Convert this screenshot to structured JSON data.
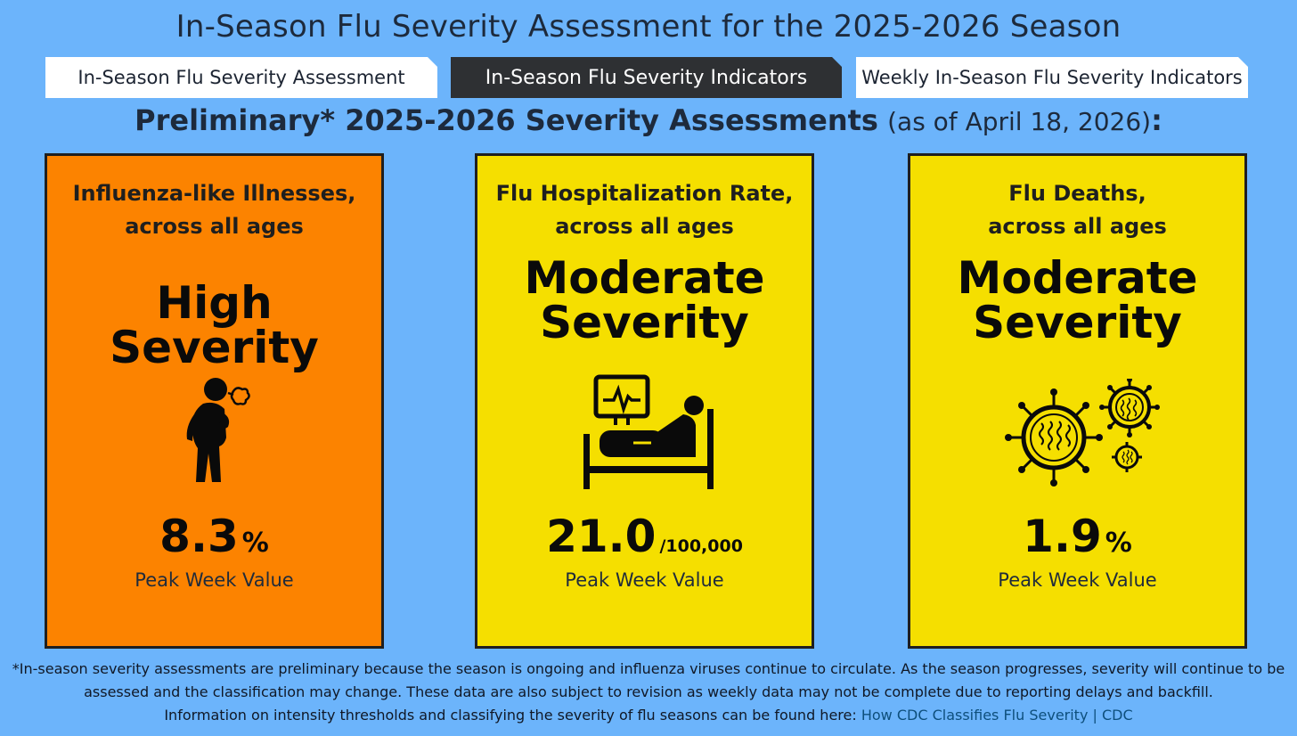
{
  "header": {
    "title": "In-Season Flu Severity Assessment for the 2025-2026 Season"
  },
  "tabs": [
    {
      "label": "In-Season Flu Severity Assessment",
      "active": false
    },
    {
      "label": "In-Season Flu Severity Indicators",
      "active": true
    },
    {
      "label": "Weekly In-Season Flu Severity Indicators",
      "active": false
    }
  ],
  "subtitle": {
    "main": "Preliminary* 2025-2026 Severity Assessments",
    "date": "(as of April 18, 2026)",
    "colon": ":"
  },
  "colors": {
    "background": "#6cb4fb",
    "high": "#fc8300",
    "moderate": "#f5df00",
    "active_tab": "#2e3033"
  },
  "cards": [
    {
      "title_line1": "Influenza-like Illnesses,",
      "title_line2": "across all ages",
      "severity": "High Severity",
      "icon": "coughing-person-icon",
      "value": "8.3",
      "unit": "%",
      "caption": "Peak Week Value",
      "color": "#fc8300"
    },
    {
      "title_line1": "Flu Hospitalization Rate,",
      "title_line2": "across all ages",
      "severity_line1": "Moderate",
      "severity_line2": "Severity",
      "icon": "hospital-bed-icon",
      "value": "21.0",
      "unit": "/100,000",
      "caption": "Peak Week Value",
      "color": "#f5df00"
    },
    {
      "title_line1": "Flu Deaths,",
      "title_line2": "across all ages",
      "severity_line1": "Moderate",
      "severity_line2": "Severity",
      "icon": "virus-icon",
      "value": "1.9",
      "unit": "%",
      "caption": "Peak Week Value",
      "color": "#f5df00"
    }
  ],
  "footnote": {
    "line1": "*In-season severity assessments are preliminary because the season is ongoing and influenza viruses continue to circulate. As the season progresses, severity will continue to be",
    "line2": "assessed and the classification may change. These data are also subject to revision as weekly data may not be complete due to reporting delays and backfill.",
    "line3": "Information on intensity thresholds and classifying the severity of flu seasons can be found here: ",
    "link": "How CDC Classifies Flu Severity | CDC"
  }
}
